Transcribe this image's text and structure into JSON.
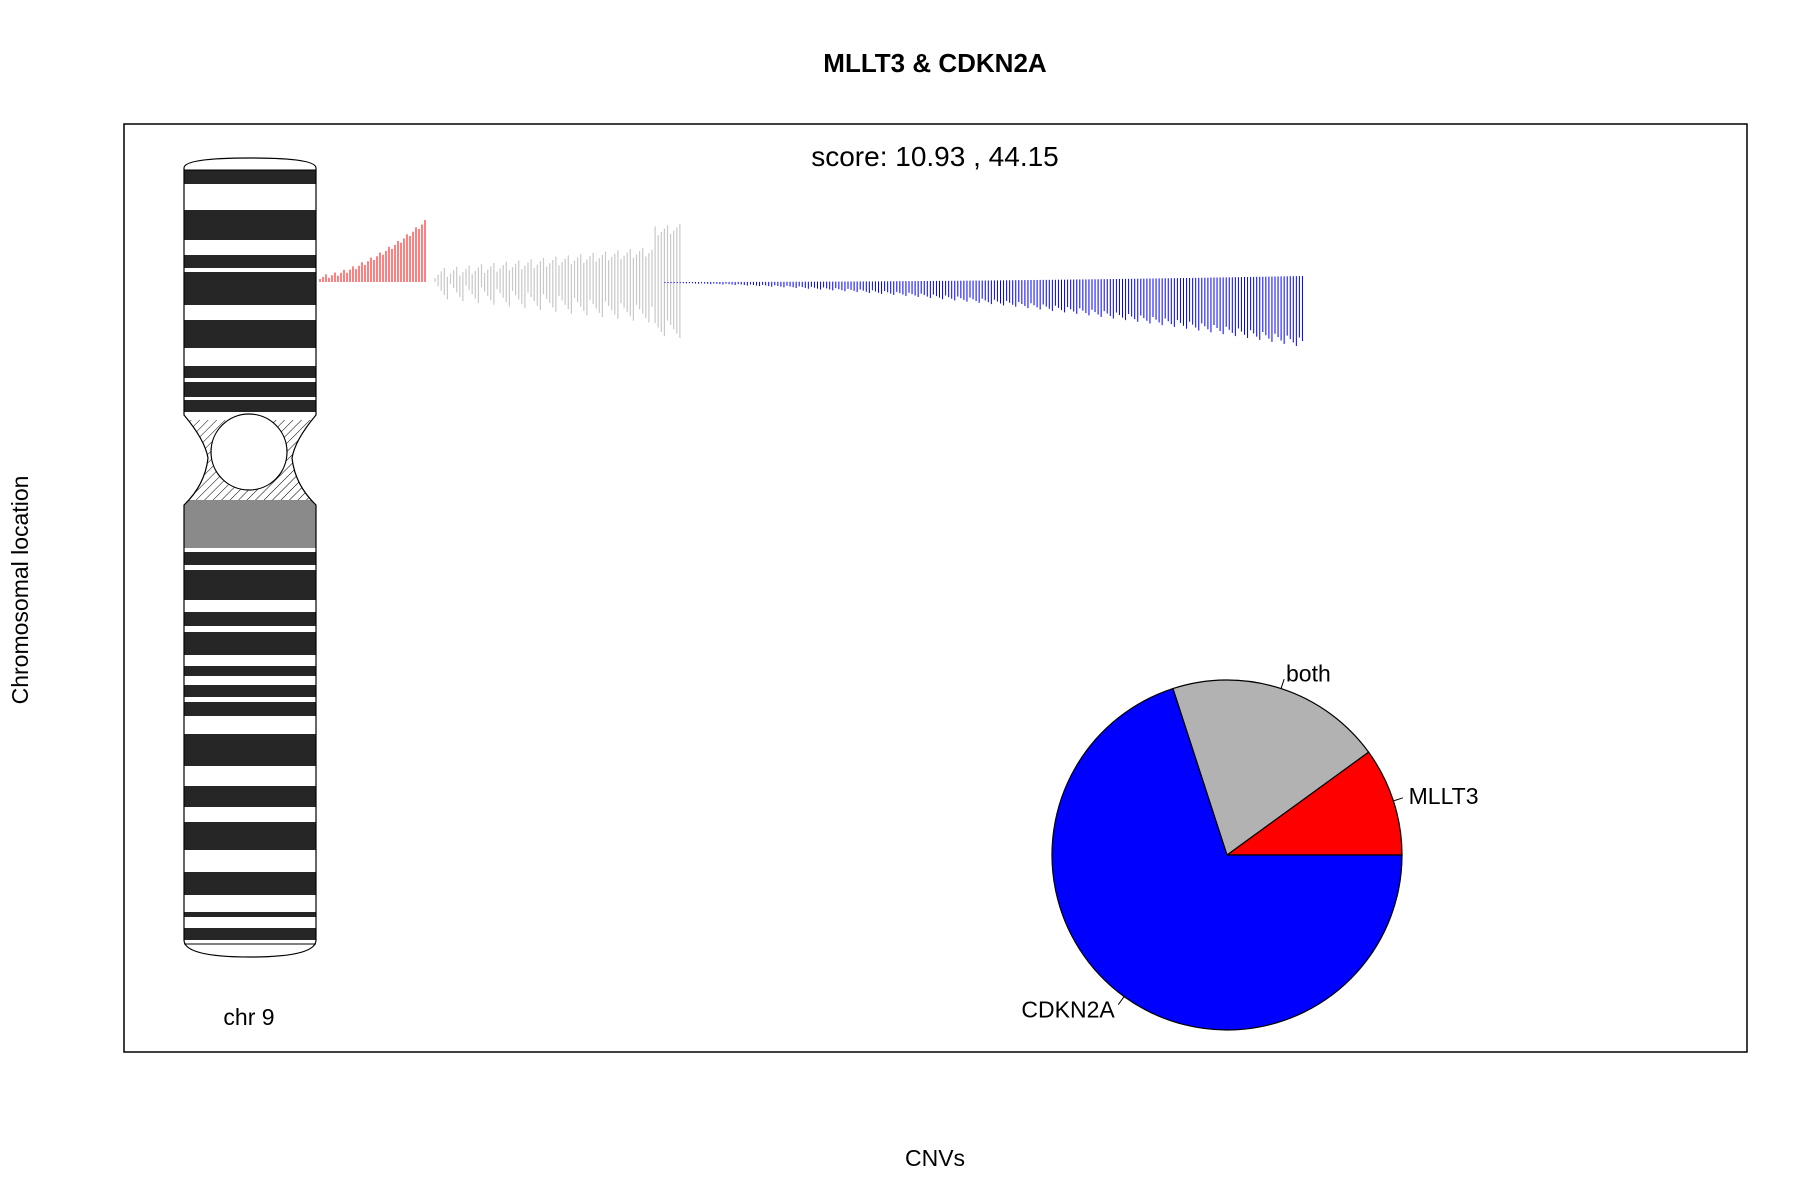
{
  "chart_data": {
    "type": "pie",
    "title": "MLLT3 & CDKN2A",
    "subtitle": "score:  10.93 , 44.15",
    "xlabel": "CNVs",
    "ylabel": "Chromosomal location",
    "chromosome_label": "chr 9",
    "slices": [
      {
        "name": "MLLT3",
        "value": 10,
        "color": "#ff0000"
      },
      {
        "name": "both",
        "value": 20,
        "color": "#b2b2b2"
      },
      {
        "name": "CDKN2A",
        "value": 70,
        "color": "#0000ff"
      }
    ],
    "cnv_tracks": [
      {
        "group": "MLLT3",
        "color": "#ff0000"
      },
      {
        "group": "both",
        "color": "#c8c8c8"
      },
      {
        "group": "CDKN2A",
        "color": "#0000ff"
      }
    ]
  }
}
